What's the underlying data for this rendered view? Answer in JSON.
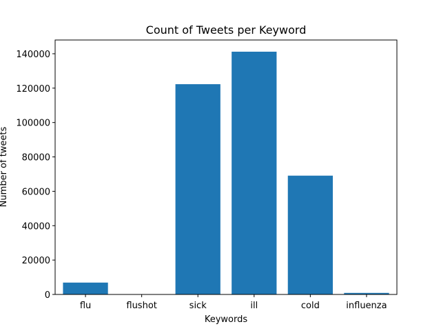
{
  "chart_data": {
    "type": "bar",
    "title": "Count of Tweets per Keyword",
    "xlabel": "Keywords",
    "ylabel": "Number of tweets",
    "categories": [
      "flu",
      "flushot",
      "sick",
      "ill",
      "cold",
      "influenza"
    ],
    "values": [
      6900,
      150,
      122300,
      141200,
      69100,
      900
    ],
    "ylim": [
      0,
      148000
    ],
    "yticks": [
      0,
      20000,
      40000,
      60000,
      80000,
      100000,
      120000,
      140000
    ],
    "ytick_labels": [
      "0",
      "20000",
      "40000",
      "60000",
      "80000",
      "100000",
      "120000",
      "140000"
    ],
    "bar_color": "#1f77b4",
    "grid": false,
    "legend": "none"
  }
}
